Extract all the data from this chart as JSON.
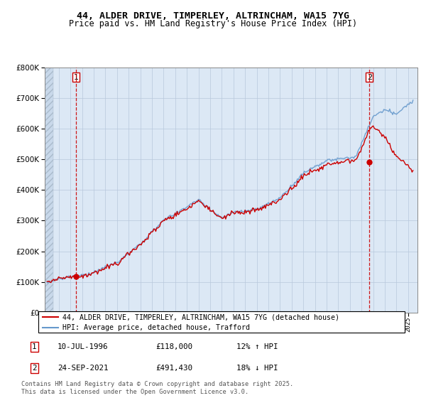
{
  "title_line1": "44, ALDER DRIVE, TIMPERLEY, ALTRINCHAM, WA15 7YG",
  "title_line2": "Price paid vs. HM Land Registry's House Price Index (HPI)",
  "legend_label_red": "44, ALDER DRIVE, TIMPERLEY, ALTRINCHAM, WA15 7YG (detached house)",
  "legend_label_blue": "HPI: Average price, detached house, Trafford",
  "sale1_date": "10-JUL-1996",
  "sale1_price": "£118,000",
  "sale1_hpi": "12% ↑ HPI",
  "sale2_date": "24-SEP-2021",
  "sale2_price": "£491,430",
  "sale2_hpi": "18% ↓ HPI",
  "footnote": "Contains HM Land Registry data © Crown copyright and database right 2025.\nThis data is licensed under the Open Government Licence v3.0.",
  "red_color": "#cc0000",
  "blue_color": "#6699cc",
  "vline_color": "#cc0000",
  "ylim_max": 800000,
  "ylim_min": 0
}
